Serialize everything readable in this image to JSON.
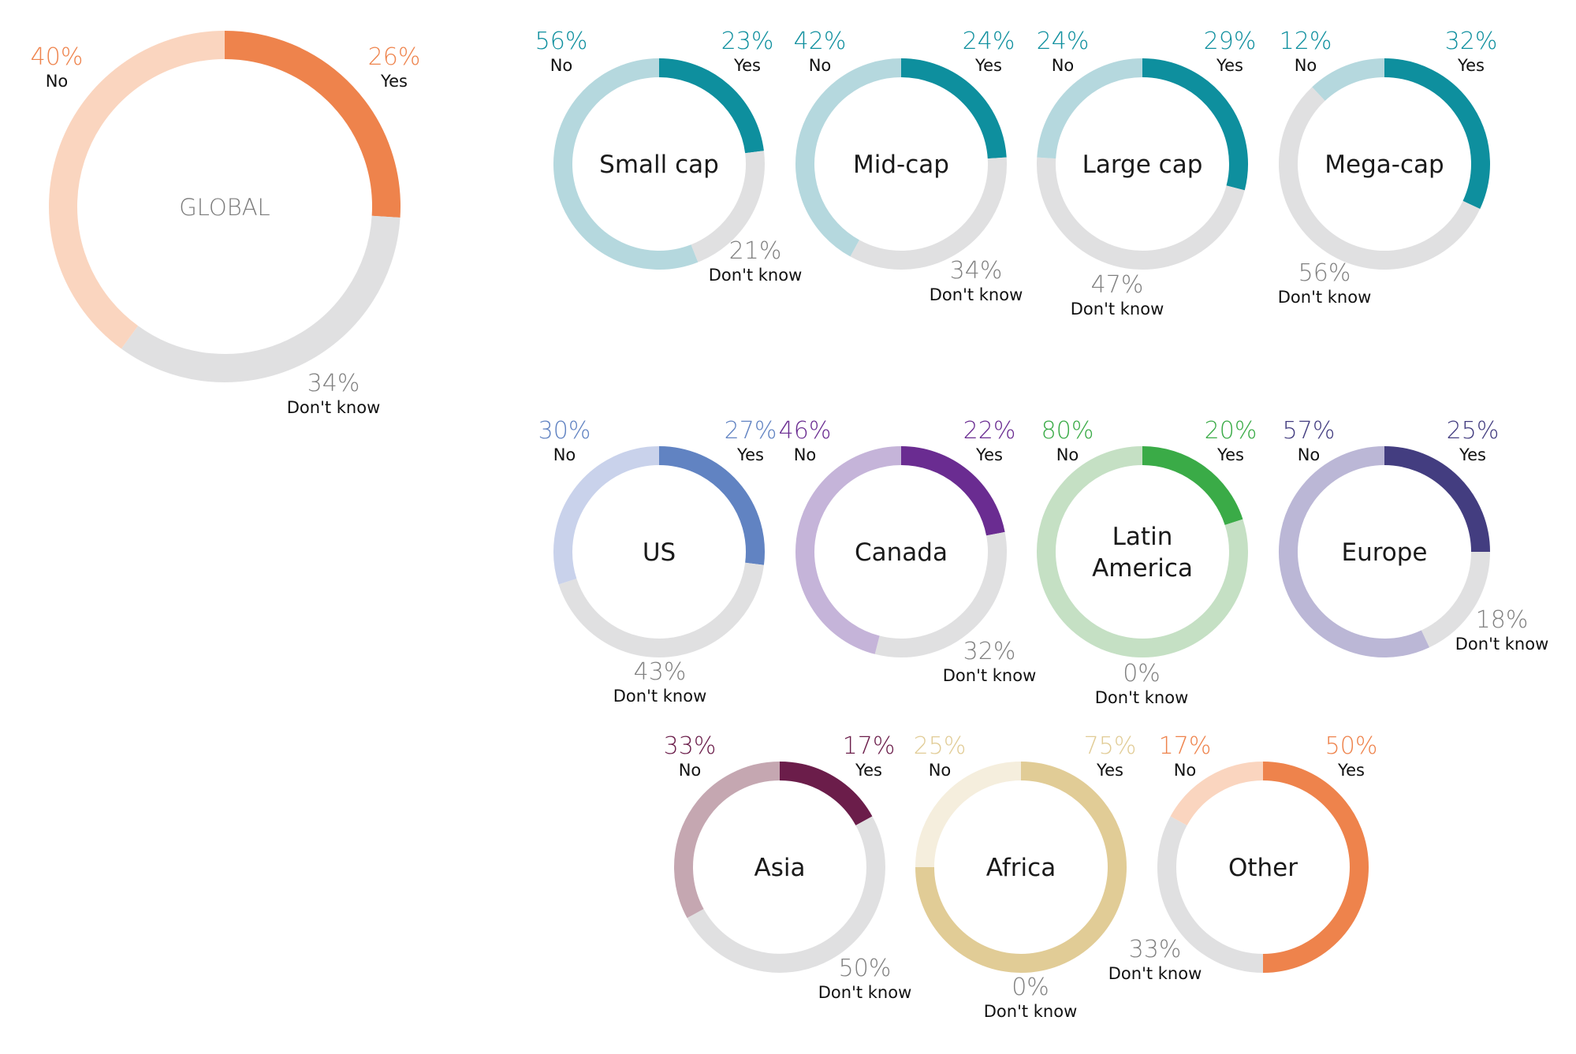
{
  "chart_data": [
    {
      "type": "pie",
      "title": "GLOBAL",
      "categories": [
        "Yes",
        "Don't know",
        "No"
      ],
      "values": [
        26,
        34,
        40
      ],
      "labels": [
        "26%",
        "34%",
        "40%"
      ],
      "colors": {
        "yes": "#ee834c",
        "no": "#fad5bf",
        "dontknow": "#e0e0e1",
        "text": "#7a7a7a",
        "pct_yes": "#ee834c",
        "pct_no": "#ee834c"
      }
    },
    {
      "type": "pie",
      "title": "Small cap",
      "categories": [
        "Yes",
        "Don't know",
        "No"
      ],
      "values": [
        23,
        21,
        56
      ],
      "labels": [
        "23%",
        "21%",
        "56%"
      ],
      "colors": {
        "yes": "#0e8f9e",
        "no": "#b5d8de",
        "dontknow": "#e0e0e1",
        "text": "#1a1a1a",
        "pct_yes": "#0e8f9e",
        "pct_no": "#0e8f9e"
      }
    },
    {
      "type": "pie",
      "title": "Mid-cap",
      "categories": [
        "Yes",
        "Don't know",
        "No"
      ],
      "values": [
        24,
        34,
        42
      ],
      "labels": [
        "24%",
        "34%",
        "42%"
      ],
      "colors": {
        "yes": "#0e8f9e",
        "no": "#b5d8de",
        "dontknow": "#e0e0e1",
        "text": "#1a1a1a",
        "pct_yes": "#0e8f9e",
        "pct_no": "#0e8f9e"
      }
    },
    {
      "type": "pie",
      "title": "Large cap",
      "categories": [
        "Yes",
        "Don't know",
        "No"
      ],
      "values": [
        29,
        47,
        24
      ],
      "labels": [
        "29%",
        "47%",
        "24%"
      ],
      "colors": {
        "yes": "#0e8f9e",
        "no": "#b5d8de",
        "dontknow": "#e0e0e1",
        "text": "#1a1a1a",
        "pct_yes": "#0e8f9e",
        "pct_no": "#0e8f9e"
      }
    },
    {
      "type": "pie",
      "title": "Mega-cap",
      "categories": [
        "Yes",
        "Don't know",
        "No"
      ],
      "values": [
        32,
        56,
        12
      ],
      "labels": [
        "32%",
        "56%",
        "12%"
      ],
      "colors": {
        "yes": "#0e8f9e",
        "no": "#b5d8de",
        "dontknow": "#e0e0e1",
        "text": "#1a1a1a",
        "pct_yes": "#0e8f9e",
        "pct_no": "#0e8f9e"
      }
    },
    {
      "type": "pie",
      "title": "US",
      "categories": [
        "Yes",
        "Don't know",
        "No"
      ],
      "values": [
        27,
        43,
        30
      ],
      "labels": [
        "27%",
        "43%",
        "30%"
      ],
      "colors": {
        "yes": "#6183c2",
        "no": "#c9d2eb",
        "dontknow": "#e0e0e1",
        "text": "#1a1a1a",
        "pct_yes": "#6183c2",
        "pct_no": "#6183c2"
      }
    },
    {
      "type": "pie",
      "title": "Canada",
      "categories": [
        "Yes",
        "Don't know",
        "No"
      ],
      "values": [
        22,
        32,
        46
      ],
      "labels": [
        "22%",
        "32%",
        "46%"
      ],
      "colors": {
        "yes": "#6a2c91",
        "no": "#c5b4d9",
        "dontknow": "#e0e0e1",
        "text": "#1a1a1a",
        "pct_yes": "#6a2c91",
        "pct_no": "#6a2c91"
      }
    },
    {
      "type": "pie",
      "title": "Latin America",
      "categories": [
        "Yes",
        "Don't know",
        "No"
      ],
      "values": [
        20,
        0,
        80
      ],
      "labels": [
        "20%",
        "0%",
        "80%"
      ],
      "colors": {
        "yes": "#3aab47",
        "no": "#c5e0c4",
        "dontknow": "#e0e0e1",
        "text": "#1a1a1a",
        "pct_yes": "#3aab47",
        "pct_no": "#3aab47"
      }
    },
    {
      "type": "pie",
      "title": "Europe",
      "categories": [
        "Yes",
        "Don't know",
        "No"
      ],
      "values": [
        25,
        18,
        57
      ],
      "labels": [
        "25%",
        "18%",
        "57%"
      ],
      "colors": {
        "yes": "#433d80",
        "no": "#bbb7d6",
        "dontknow": "#e0e0e1",
        "text": "#1a1a1a",
        "pct_yes": "#433d80",
        "pct_no": "#433d80"
      }
    },
    {
      "type": "pie",
      "title": "Asia",
      "categories": [
        "Yes",
        "Don't know",
        "No"
      ],
      "values": [
        17,
        50,
        33
      ],
      "labels": [
        "17%",
        "50%",
        "33%"
      ],
      "colors": {
        "yes": "#6b1d4a",
        "no": "#c5a7b1",
        "dontknow": "#e0e0e1",
        "text": "#1a1a1a",
        "pct_yes": "#6b1d4a",
        "pct_no": "#6b1d4a"
      }
    },
    {
      "type": "pie",
      "title": "Africa",
      "categories": [
        "Yes",
        "Don't know",
        "No"
      ],
      "values": [
        75,
        0,
        25
      ],
      "labels": [
        "75%",
        "0%",
        "25%"
      ],
      "colors": {
        "yes": "#e1cc96",
        "no": "#f5eedd",
        "dontknow": "#e0e0e1",
        "text": "#1a1a1a",
        "pct_yes": "#e1cc96",
        "pct_no": "#e1cc96"
      }
    },
    {
      "type": "pie",
      "title": "Other",
      "categories": [
        "Yes",
        "Don't know",
        "No"
      ],
      "values": [
        50,
        33,
        17
      ],
      "labels": [
        "50%",
        "33%",
        "17%"
      ],
      "colors": {
        "yes": "#ee834c",
        "no": "#fad5bf",
        "dontknow": "#e0e0e1",
        "text": "#1a1a1a",
        "pct_yes": "#ee834c",
        "pct_no": "#ee834c"
      }
    }
  ],
  "dontknow_pct_color": "#808080",
  "label_color": "#111111"
}
